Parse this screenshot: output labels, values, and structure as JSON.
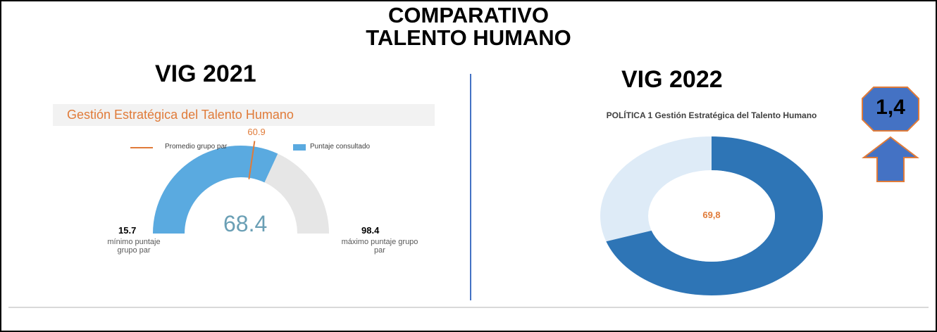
{
  "header": {
    "title_lines": [
      "COMPARATIVO",
      "TALENTO HUMANO"
    ]
  },
  "chart_data": [
    {
      "type": "gauge",
      "heading": "VIG 2021",
      "title": "Gestión Estratégica del Talento Humano",
      "series": [
        {
          "name": "Promedio grupo par",
          "color": "#e07b39",
          "values": [
            60.9
          ]
        },
        {
          "name": "Puntaje consultado",
          "color": "#5aaae0",
          "values": [
            68.4
          ]
        }
      ],
      "ylim": [
        15.7,
        98.4
      ],
      "min_label": "mínimo puntaje grupo par",
      "max_label": "máximo puntaje grupo par",
      "track_color": "#e6e6e6"
    },
    {
      "type": "donut",
      "heading": "VIG 2022",
      "title": "POLÍTICA 1 Gestión Estratégica del Talento Humano",
      "values": [
        69.8
      ],
      "value_labels": [
        "69,8"
      ],
      "ylim": [
        0,
        100
      ],
      "color": "#2e75b6",
      "track_color": "#deebf7"
    }
  ],
  "badge": {
    "value": 1.4,
    "label": "1,4"
  }
}
